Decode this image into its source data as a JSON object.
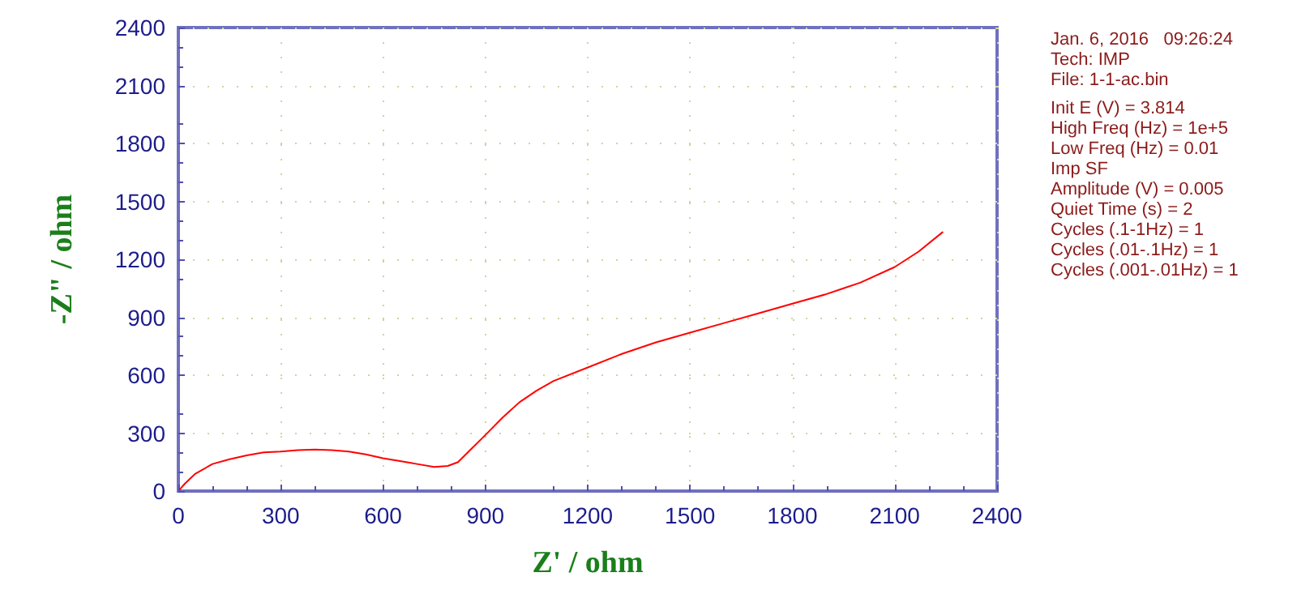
{
  "chart_data": {
    "type": "line",
    "xlabel": "Z' / ohm",
    "ylabel": "-Z\" / ohm",
    "series": [
      {
        "color": "#ff0000",
        "x": [
          5,
          20,
          50,
          100,
          150,
          200,
          250,
          300,
          350,
          400,
          450,
          500,
          550,
          600,
          650,
          700,
          750,
          790,
          820,
          860,
          900,
          950,
          1000,
          1050,
          1100,
          1200,
          1300,
          1400,
          1500,
          1600,
          1700,
          1800,
          1900,
          1950,
          2000,
          2100,
          2170,
          2240
        ],
        "values": [
          10,
          40,
          90,
          140,
          165,
          185,
          200,
          205,
          212,
          215,
          212,
          205,
          190,
          170,
          155,
          140,
          125,
          130,
          150,
          220,
          290,
          380,
          460,
          520,
          570,
          640,
          710,
          770,
          820,
          870,
          920,
          970,
          1020,
          1050,
          1080,
          1160,
          1240,
          1340
        ]
      }
    ],
    "xlim": [
      0,
      2400
    ],
    "xticks": [
      0,
      300,
      600,
      900,
      1200,
      1500,
      1800,
      2100,
      2400
    ],
    "ylim": [
      0,
      2400
    ],
    "yticks": [
      0,
      300,
      600,
      900,
      1200,
      1500,
      1800,
      2100,
      2400
    ],
    "grid": true,
    "marker": "none",
    "line_style": "solid",
    "annotations": [
      "Jan. 6, 2016   09:26:24",
      "Tech: IMP",
      "File: 1-1-ac.bin",
      "Init E (V) = 3.814",
      "High Freq (Hz) = 1e+5",
      "Low Freq (Hz) = 0.01",
      "Imp SF",
      "Amplitude (V) = 0.005",
      "Quiet Time (s) = 2",
      "Cycles (.1-1Hz) = 1",
      "Cycles (.01-.1Hz) = 1",
      "Cycles (.001-.01Hz) = 1"
    ]
  }
}
